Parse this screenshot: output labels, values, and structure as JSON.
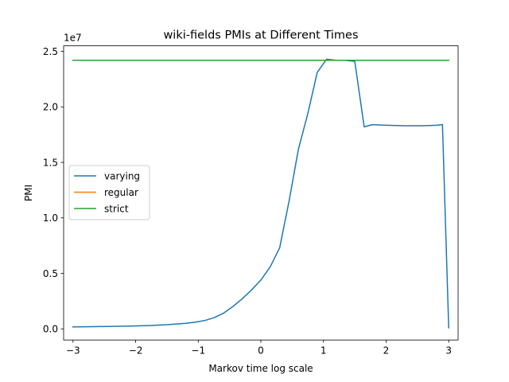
{
  "chart_data": {
    "type": "line",
    "title": "wiki-fields PMIs at Different Times",
    "xlabel": "Markov time log scale",
    "ylabel": "PMI",
    "y_offset_label": "1e7",
    "xlim": [
      -3.15,
      3.15
    ],
    "ylim": [
      -1.0,
      25.5
    ],
    "x_ticks": [
      -3,
      -2,
      -1,
      0,
      1,
      2,
      3
    ],
    "x_tick_labels": [
      "−3",
      "−2",
      "−1",
      "0",
      "1",
      "2",
      "3"
    ],
    "y_ticks": [
      0.0,
      5.0,
      10.0,
      15.0,
      20.0,
      25.0
    ],
    "y_tick_labels": [
      "0.0",
      "0.5",
      "1.0",
      "1.5",
      "2.0",
      "2.5"
    ],
    "y_units": "x1e6",
    "legend_position": "center-left",
    "series": [
      {
        "name": "varying",
        "color": "#1f77b4",
        "x": [
          -3.0,
          -2.7,
          -2.4,
          -2.1,
          -1.8,
          -1.5,
          -1.2,
          -1.05,
          -0.9,
          -0.75,
          -0.6,
          -0.45,
          -0.3,
          -0.15,
          0.0,
          0.15,
          0.3,
          0.45,
          0.6,
          0.75,
          0.9,
          1.05,
          1.2,
          1.35,
          1.5,
          1.65,
          1.78,
          2.0,
          2.3,
          2.6,
          2.8,
          2.9,
          3.0
        ],
        "values": [
          0.18,
          0.2,
          0.22,
          0.25,
          0.3,
          0.38,
          0.5,
          0.6,
          0.75,
          1.0,
          1.4,
          2.0,
          2.7,
          3.5,
          4.4,
          5.6,
          7.3,
          11.5,
          16.2,
          19.4,
          23.1,
          24.3,
          24.2,
          24.2,
          24.1,
          18.2,
          18.4,
          18.35,
          18.3,
          18.3,
          18.35,
          18.4,
          0.1
        ]
      },
      {
        "name": "regular",
        "color": "#ff7f0e",
        "x": [
          -3.0,
          3.0
        ],
        "values": [
          24.2,
          24.2
        ]
      },
      {
        "name": "strict",
        "color": "#2ca02c",
        "x": [
          -3.0,
          3.0
        ],
        "values": [
          24.2,
          24.2
        ]
      }
    ]
  }
}
